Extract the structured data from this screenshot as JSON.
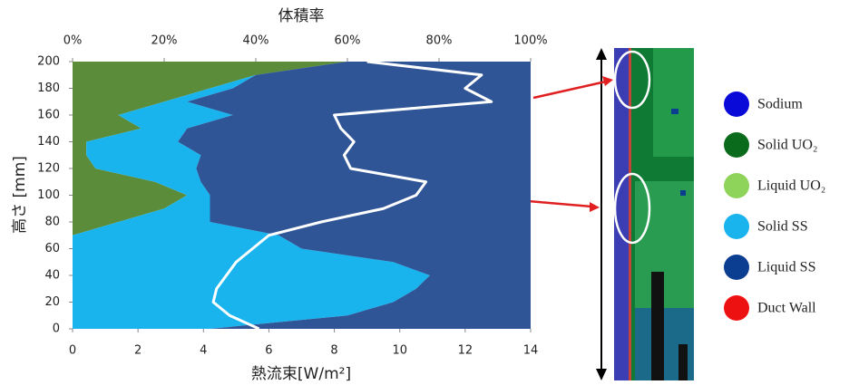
{
  "chart_data": {
    "type": "area",
    "orientation": "horizontal",
    "title": "体積率",
    "x_label": "熱流束[W/m²]",
    "y_label": "高さ [mm]",
    "y": [
      0,
      10,
      20,
      30,
      40,
      50,
      60,
      70,
      80,
      90,
      100,
      110,
      120,
      130,
      140,
      150,
      160,
      170,
      180,
      190,
      200
    ],
    "ylim": [
      0,
      200
    ],
    "yticks": [
      0,
      20,
      40,
      60,
      80,
      100,
      120,
      140,
      160,
      180,
      200
    ],
    "xlim": [
      0,
      100
    ],
    "xticks": [
      {
        "value": 0,
        "label": "0%"
      },
      {
        "value": 20,
        "label": "20%"
      },
      {
        "value": 40,
        "label": "40%"
      },
      {
        "value": 60,
        "label": "60%"
      },
      {
        "value": 80,
        "label": "80%"
      },
      {
        "value": 100,
        "label": "100%"
      }
    ],
    "x2lim": [
      0,
      14
    ],
    "x2ticks": [
      0,
      2,
      4,
      6,
      8,
      10,
      12,
      14
    ],
    "series": [
      {
        "color": "#5b8c3a",
        "values": [
          0,
          0,
          0,
          0,
          0,
          0,
          0,
          0,
          10,
          20,
          25,
          18,
          5,
          3,
          3,
          15,
          10,
          20,
          30,
          40,
          60
        ]
      },
      {
        "color": "#19b4ee",
        "values": [
          30,
          60,
          70,
          75,
          78,
          70,
          50,
          45,
          20,
          10,
          5,
          10,
          22,
          25,
          20,
          10,
          25,
          5,
          5,
          0,
          0
        ]
      },
      {
        "color": "#2f5597",
        "values": [
          70,
          40,
          30,
          25,
          22,
          30,
          50,
          55,
          70,
          70,
          70,
          72,
          73,
          72,
          77,
          75,
          65,
          75,
          65,
          60,
          40
        ]
      },
      {
        "type": "line",
        "axis": "x2",
        "color": "#ffffff",
        "values": [
          5.7,
          4.8,
          4.3,
          4.4,
          4.7,
          5.0,
          5.5,
          6.0,
          7.6,
          9.5,
          10.5,
          10.8,
          8.5,
          8.3,
          8.6,
          8.2,
          8.0,
          12.8,
          12.0,
          12.5,
          9.0
        ]
      }
    ],
    "legend": [
      {
        "label": "Sodium",
        "color": "#0a0ad8"
      },
      {
        "label": "Solid UO₂",
        "color": "#0b6b1c"
      },
      {
        "label": "Liquid UO₂",
        "color": "#8fd45a"
      },
      {
        "label": "Solid SS",
        "color": "#19b4ee"
      },
      {
        "label": "Liquid SS",
        "color": "#0b3d91"
      },
      {
        "label": "Duct Wall",
        "color": "#ee1111"
      }
    ]
  }
}
